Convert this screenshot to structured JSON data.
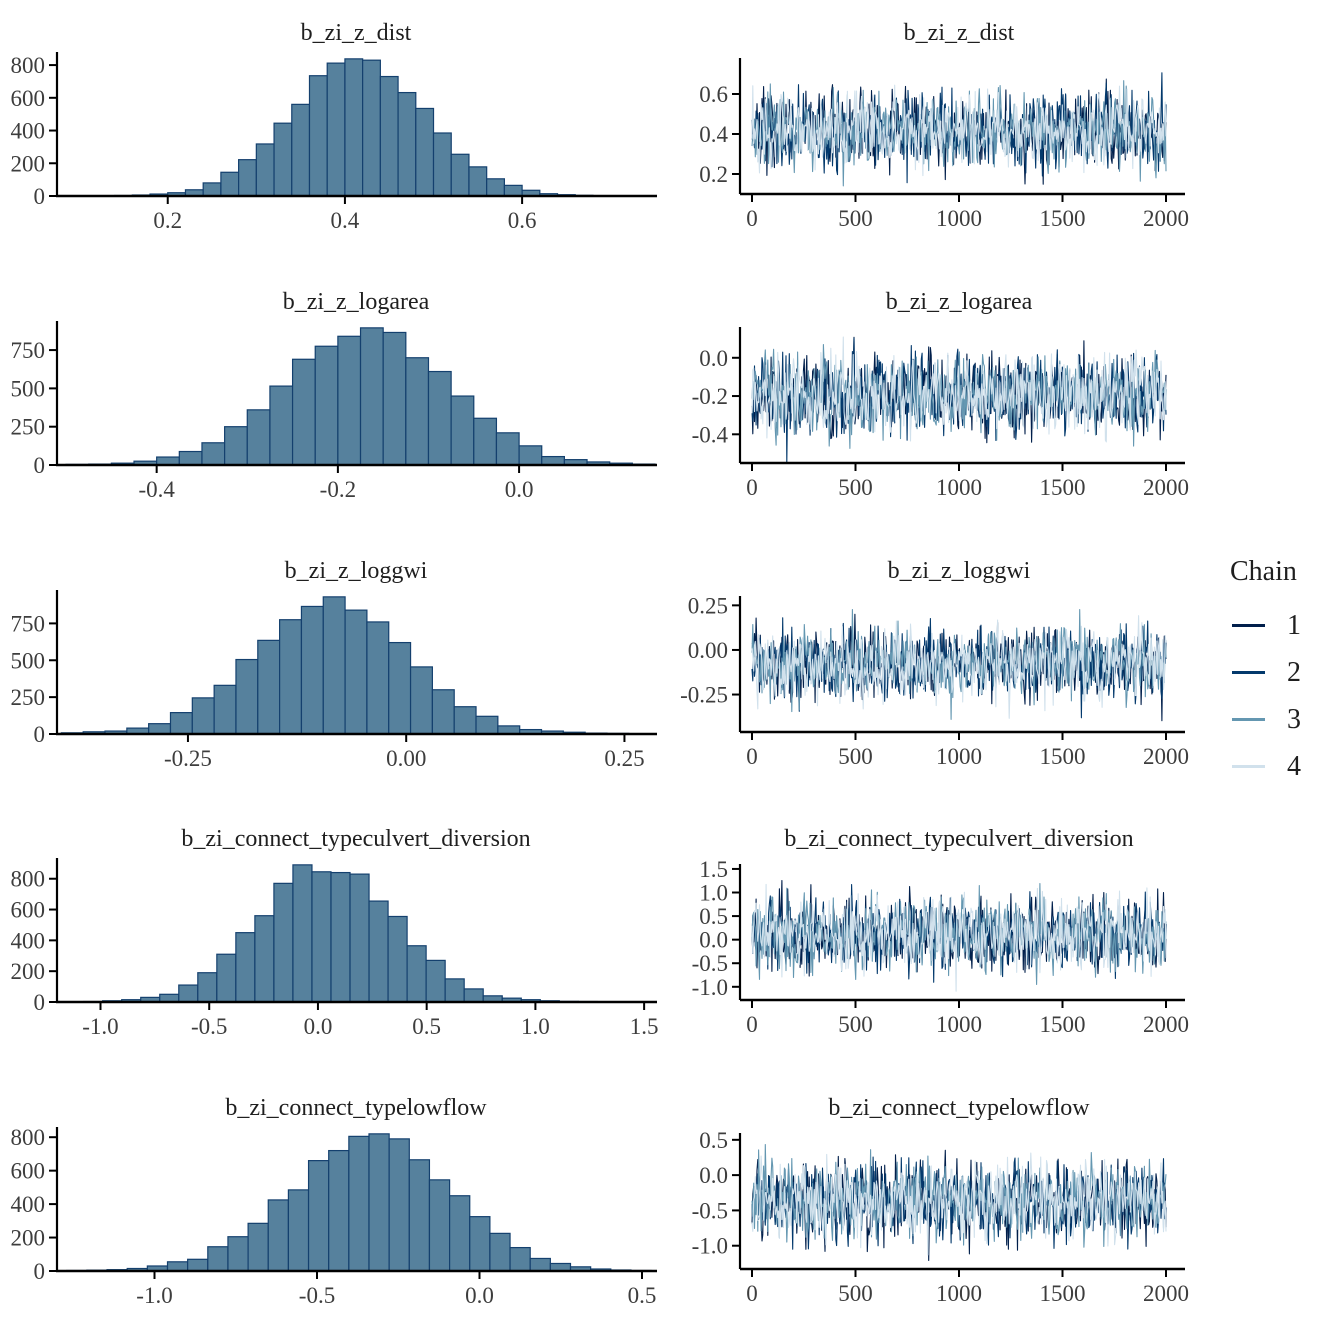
{
  "styles": {
    "background": "#ffffff",
    "hist_fill": "#56819D",
    "hist_stroke": "#14406E",
    "axis_color": "#000000",
    "tick_label_color": "#3d3d3d",
    "title_color": "#1f1f1f",
    "tick_font_size": 23,
    "title_font_size": 24
  },
  "legend": {
    "title": "Chain",
    "entries": [
      {
        "label": "1",
        "color": "#011f4b"
      },
      {
        "label": "2",
        "color": "#03396c"
      },
      {
        "label": "3",
        "color": "#6497b1"
      },
      {
        "label": "4",
        "color": "#d1e1ec"
      }
    ]
  },
  "chart_data": [
    {
      "parameter": "b_zi_z_dist",
      "histogram": {
        "type": "bar",
        "title": "b_zi_z_dist",
        "bin_start": 0.14,
        "bin_width": 0.02,
        "counts": [
          3,
          6,
          12,
          20,
          38,
          80,
          145,
          222,
          318,
          445,
          560,
          735,
          812,
          838,
          830,
          730,
          632,
          535,
          385,
          255,
          178,
          105,
          65,
          35,
          14,
          8,
          4,
          2,
          1,
          1
        ],
        "xlim": [
          0.075,
          0.75
        ],
        "xticks": [
          0.2,
          0.4,
          0.6
        ],
        "xtick_labels": [
          "0.2",
          "0.4",
          "0.6"
        ],
        "yticks": [
          0,
          200,
          400,
          600,
          800
        ],
        "ytick_labels": [
          "0",
          "200",
          "400",
          "600",
          "800"
        ]
      },
      "trace": {
        "type": "line",
        "title": "b_zi_z_dist",
        "x_range": [
          0,
          2000
        ],
        "xticks": [
          0,
          500,
          1000,
          1500,
          2000
        ],
        "xtick_labels": [
          "0",
          "500",
          "1000",
          "1500",
          "2000"
        ],
        "ylim": [
          0.1,
          0.76
        ],
        "yticks": [
          0.6,
          0.4,
          0.2
        ],
        "ytick_labels": [
          "0.6",
          "0.4",
          "0.2"
        ],
        "center": 0.42,
        "spread": 0.08,
        "n_chains": 4,
        "n_iterations": 2000
      }
    },
    {
      "parameter": "b_zi_z_logarea",
      "histogram": {
        "type": "bar",
        "title": "b_zi_z_logarea",
        "bin_start": -0.5,
        "bin_width": 0.025,
        "counts": [
          4,
          6,
          12,
          25,
          52,
          88,
          145,
          250,
          360,
          515,
          690,
          775,
          840,
          895,
          865,
          700,
          610,
          450,
          305,
          210,
          125,
          55,
          35,
          20,
          12,
          6
        ],
        "xlim": [
          -0.51,
          0.15
        ],
        "xticks": [
          -0.4,
          -0.2,
          0.0
        ],
        "xtick_labels": [
          "-0.4",
          "-0.2",
          "0.0"
        ],
        "yticks": [
          0,
          250,
          500,
          750
        ],
        "ytick_labels": [
          "0",
          "250",
          "500",
          "750"
        ]
      },
      "trace": {
        "type": "line",
        "title": "b_zi_z_logarea",
        "x_range": [
          0,
          2000
        ],
        "xticks": [
          0,
          500,
          1000,
          1500,
          2000
        ],
        "xtick_labels": [
          "0",
          "500",
          "1000",
          "1500",
          "2000"
        ],
        "ylim": [
          -0.55,
          0.14
        ],
        "yticks": [
          0.0,
          -0.2,
          -0.4
        ],
        "ytick_labels": [
          "0.0",
          "-0.2",
          "-0.4"
        ],
        "center": -0.19,
        "spread": 0.085,
        "n_chains": 4,
        "n_iterations": 2000
      }
    },
    {
      "parameter": "b_zi_z_loggwi",
      "histogram": {
        "type": "bar",
        "title": "b_zi_z_loggwi",
        "bin_start": -0.395,
        "bin_width": 0.025,
        "counts": [
          8,
          15,
          20,
          40,
          70,
          145,
          245,
          330,
          505,
          635,
          775,
          865,
          930,
          840,
          760,
          620,
          455,
          300,
          185,
          120,
          55,
          30,
          20,
          12,
          6,
          4
        ],
        "xlim": [
          -0.4,
          0.285
        ],
        "xticks": [
          -0.25,
          0.0,
          0.25
        ],
        "xtick_labels": [
          "-0.25",
          "0.00",
          "0.25"
        ],
        "yticks": [
          0,
          250,
          500,
          750
        ],
        "ytick_labels": [
          "0",
          "250",
          "500",
          "750"
        ]
      },
      "trace": {
        "type": "line",
        "title": "b_zi_z_loggwi",
        "x_range": [
          0,
          2000
        ],
        "xticks": [
          0,
          500,
          1000,
          1500,
          2000
        ],
        "xtick_labels": [
          "0",
          "500",
          "1000",
          "1500",
          "2000"
        ],
        "ylim": [
          -0.46,
          0.28
        ],
        "yticks": [
          0.25,
          0.0,
          -0.25
        ],
        "ytick_labels": [
          "0.25",
          "0.00",
          "-0.25"
        ],
        "center": -0.08,
        "spread": 0.085,
        "n_chains": 4,
        "n_iterations": 2000
      }
    },
    {
      "parameter": "b_zi_connect_typeculvert_diversion",
      "histogram": {
        "type": "bar",
        "title": "b_zi_connect_typeculvert_diversion",
        "bin_start": -1.165,
        "bin_width": 0.0875,
        "counts": [
          2,
          3,
          8,
          15,
          30,
          50,
          110,
          190,
          310,
          450,
          560,
          770,
          890,
          845,
          840,
          830,
          655,
          555,
          365,
          270,
          150,
          85,
          40,
          25,
          15,
          8,
          4,
          3
        ],
        "xlim": [
          -1.2,
          1.55
        ],
        "xticks": [
          -1.0,
          -0.5,
          0.0,
          0.5,
          1.0,
          1.5
        ],
        "xtick_labels": [
          "-1.0",
          "-0.5",
          "0.0",
          "0.5",
          "1.0",
          "1.5"
        ],
        "yticks": [
          0,
          200,
          400,
          600,
          800
        ],
        "ytick_labels": [
          "0",
          "200",
          "400",
          "600",
          "800"
        ]
      },
      "trace": {
        "type": "line",
        "title": "b_zi_connect_typeculvert_diversion",
        "x_range": [
          0,
          2000
        ],
        "xticks": [
          0,
          500,
          1000,
          1500,
          2000
        ],
        "xtick_labels": [
          "0",
          "500",
          "1000",
          "1500",
          "2000"
        ],
        "ylim": [
          -1.28,
          1.52
        ],
        "yticks": [
          1.5,
          1.0,
          0.5,
          0.0,
          -0.5,
          -1.0
        ],
        "ytick_labels": [
          "1.5",
          "1.0",
          "0.5",
          "0.0",
          "-0.5",
          "-1.0"
        ],
        "center": 0.12,
        "spread": 0.32,
        "n_chains": 4,
        "n_iterations": 2000
      }
    },
    {
      "parameter": "b_zi_connect_typelowflow",
      "histogram": {
        "type": "bar",
        "title": "b_zi_connect_typelowflow",
        "bin_start": -1.27,
        "bin_width": 0.062,
        "counts": [
          3,
          5,
          8,
          15,
          30,
          55,
          70,
          145,
          205,
          285,
          425,
          485,
          660,
          720,
          805,
          820,
          790,
          665,
          545,
          450,
          325,
          225,
          140,
          75,
          45,
          25,
          12,
          6,
          3
        ],
        "xlim": [
          -1.3,
          0.54
        ],
        "xticks": [
          -1.0,
          -0.5,
          0.0,
          0.5
        ],
        "xtick_labels": [
          "-1.0",
          "-0.5",
          "0.0",
          "0.5"
        ],
        "yticks": [
          0,
          200,
          400,
          600,
          800
        ],
        "ytick_labels": [
          "0",
          "200",
          "400",
          "600",
          "800"
        ]
      },
      "trace": {
        "type": "line",
        "title": "b_zi_connect_typelowflow",
        "x_range": [
          0,
          2000
        ],
        "xticks": [
          0,
          500,
          1000,
          1500,
          2000
        ],
        "xtick_labels": [
          "0",
          "500",
          "1000",
          "1500",
          "2000"
        ],
        "ylim": [
          -1.33,
          0.54
        ],
        "yticks": [
          0.5,
          0.0,
          -0.5,
          -1.0
        ],
        "ytick_labels": [
          "0.5",
          "0.0",
          "-0.5",
          "-1.0"
        ],
        "center": -0.38,
        "spread": 0.23,
        "n_chains": 4,
        "n_iterations": 2000
      }
    }
  ]
}
